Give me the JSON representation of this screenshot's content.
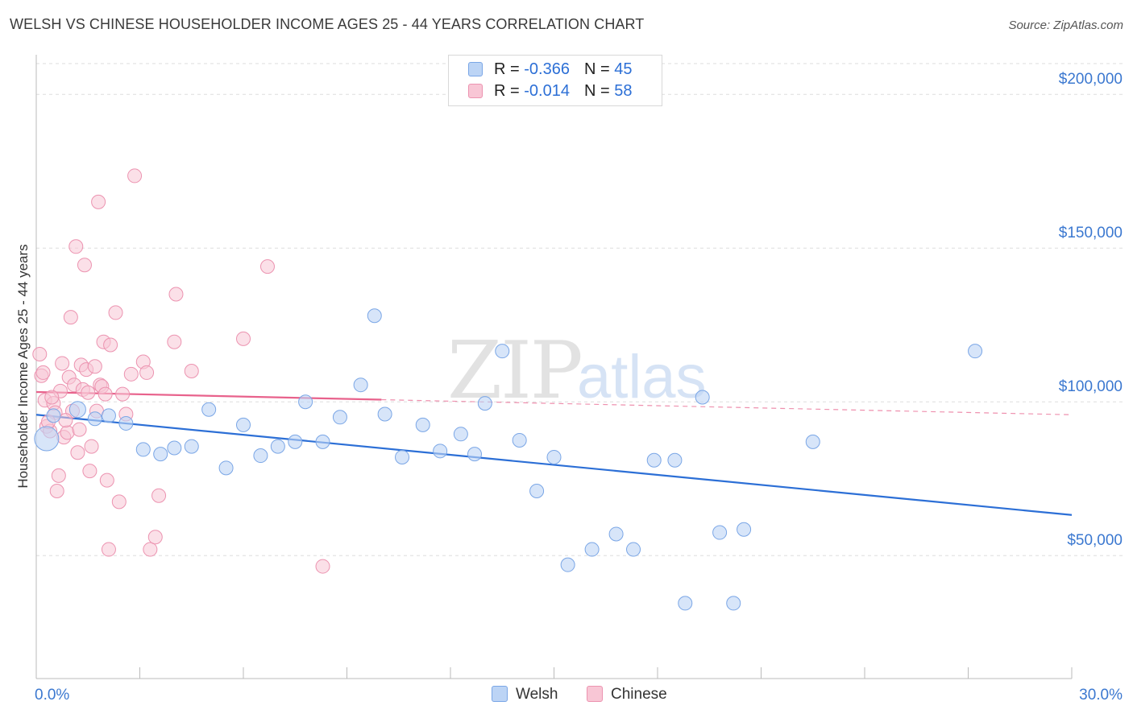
{
  "title": "WELSH VS CHINESE HOUSEHOLDER INCOME AGES 25 - 44 YEARS CORRELATION CHART",
  "source": "Source: ZipAtlas.com",
  "watermark": {
    "zip": "ZIP",
    "atlas": "atlas"
  },
  "legend": {
    "welsh": {
      "r_label": "R = ",
      "r_value": "-0.366",
      "n_label": "N = ",
      "n_value": "45"
    },
    "chinese": {
      "r_label": "R = ",
      "r_value": "-0.014",
      "n_label": "N = ",
      "n_value": "58"
    }
  },
  "bottom_legend": {
    "welsh": "Welsh",
    "chinese": "Chinese"
  },
  "colors": {
    "welsh_fill": "#bcd4f5",
    "welsh_stroke": "#7aa6e6",
    "welsh_line": "#2c6fd6",
    "chinese_fill": "#f8c6d5",
    "chinese_stroke": "#ec93b0",
    "chinese_line": "#e8628c",
    "tick_label": "#3b78d0",
    "grid": "#dddddd"
  },
  "chart_data": {
    "type": "scatter",
    "xlabel": "",
    "ylabel": "Householder Income Ages 25 - 44 years",
    "xlim": [
      0,
      30
    ],
    "ylim": [
      10000,
      210000
    ],
    "x_tick_labels": [
      "0.0%",
      "30.0%"
    ],
    "y_ticks": [
      50000,
      100000,
      150000,
      200000
    ],
    "y_tick_labels": [
      "$50,000",
      "$100,000",
      "$150,000",
      "$200,000"
    ],
    "grid": true,
    "legend_position": "top-center",
    "series": [
      {
        "name": "Welsh",
        "trend": {
          "x": [
            0,
            30
          ],
          "y": [
            95800,
            63200
          ]
        },
        "points": [
          [
            0.3,
            88000
          ],
          [
            0.5,
            95500
          ],
          [
            1.2,
            97500
          ],
          [
            1.7,
            94500
          ],
          [
            2.1,
            95500
          ],
          [
            2.6,
            93000
          ],
          [
            3.1,
            84500
          ],
          [
            3.6,
            83000
          ],
          [
            4.0,
            85000
          ],
          [
            4.5,
            85500
          ],
          [
            5.0,
            97500
          ],
          [
            5.5,
            78500
          ],
          [
            6.0,
            92500
          ],
          [
            6.5,
            82500
          ],
          [
            7.0,
            85500
          ],
          [
            7.5,
            87000
          ],
          [
            7.8,
            100000
          ],
          [
            8.3,
            87000
          ],
          [
            8.8,
            95000
          ],
          [
            9.4,
            105500
          ],
          [
            9.8,
            128000
          ],
          [
            10.1,
            96000
          ],
          [
            10.6,
            82000
          ],
          [
            11.2,
            92500
          ],
          [
            11.7,
            84000
          ],
          [
            12.3,
            89500
          ],
          [
            12.7,
            83000
          ],
          [
            13.0,
            99500
          ],
          [
            13.5,
            116500
          ],
          [
            14.0,
            87500
          ],
          [
            14.5,
            71000
          ],
          [
            15.0,
            82000
          ],
          [
            15.4,
            47000
          ],
          [
            16.1,
            52000
          ],
          [
            16.8,
            57000
          ],
          [
            17.3,
            52000
          ],
          [
            17.9,
            81000
          ],
          [
            18.5,
            81000
          ],
          [
            18.8,
            34500
          ],
          [
            19.3,
            101500
          ],
          [
            19.8,
            57500
          ],
          [
            20.2,
            34500
          ],
          [
            20.5,
            58500
          ],
          [
            22.5,
            87000
          ],
          [
            27.2,
            116500
          ]
        ]
      },
      {
        "name": "Chinese",
        "trend": {
          "x": [
            0,
            10
          ],
          "y": [
            103200,
            100700
          ]
        },
        "trend_dashed": {
          "x": [
            10,
            30
          ],
          "y": [
            100700,
            95800
          ]
        },
        "points": [
          [
            0.1,
            115500
          ],
          [
            0.15,
            108500
          ],
          [
            0.2,
            109500
          ],
          [
            0.25,
            100500
          ],
          [
            0.3,
            92000
          ],
          [
            0.4,
            90500
          ],
          [
            0.5,
            99500
          ],
          [
            0.55,
            96500
          ],
          [
            0.6,
            71000
          ],
          [
            0.65,
            76000
          ],
          [
            0.7,
            103500
          ],
          [
            0.75,
            112500
          ],
          [
            0.8,
            88500
          ],
          [
            0.9,
            90000
          ],
          [
            0.95,
            108000
          ],
          [
            1.0,
            127500
          ],
          [
            1.05,
            97000
          ],
          [
            1.1,
            105500
          ],
          [
            1.15,
            150500
          ],
          [
            1.2,
            83500
          ],
          [
            1.25,
            91000
          ],
          [
            1.3,
            112000
          ],
          [
            1.35,
            104000
          ],
          [
            1.4,
            144500
          ],
          [
            1.45,
            110500
          ],
          [
            1.5,
            103000
          ],
          [
            1.55,
            77500
          ],
          [
            1.6,
            85500
          ],
          [
            1.7,
            111500
          ],
          [
            1.8,
            165000
          ],
          [
            1.85,
            105500
          ],
          [
            1.9,
            105000
          ],
          [
            1.95,
            119500
          ],
          [
            2.0,
            102500
          ],
          [
            2.05,
            74500
          ],
          [
            2.1,
            52000
          ],
          [
            2.15,
            118500
          ],
          [
            2.3,
            129000
          ],
          [
            2.4,
            67500
          ],
          [
            2.5,
            102500
          ],
          [
            2.6,
            96000
          ],
          [
            2.75,
            109000
          ],
          [
            2.85,
            173500
          ],
          [
            3.1,
            113000
          ],
          [
            3.2,
            109500
          ],
          [
            3.3,
            52000
          ],
          [
            3.45,
            56000
          ],
          [
            3.55,
            69500
          ],
          [
            4.0,
            119500
          ],
          [
            4.05,
            135000
          ],
          [
            4.5,
            110000
          ],
          [
            6.0,
            120500
          ],
          [
            6.7,
            144000
          ],
          [
            8.3,
            46500
          ],
          [
            0.35,
            93500
          ],
          [
            0.45,
            101500
          ],
          [
            1.75,
            97000
          ],
          [
            0.85,
            94000
          ]
        ]
      }
    ]
  }
}
